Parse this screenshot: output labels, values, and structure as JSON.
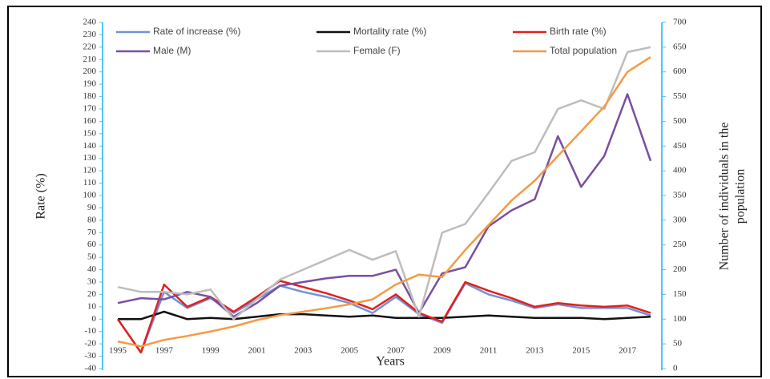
{
  "chart_data": {
    "type": "line",
    "x": [
      1995,
      1996,
      1997,
      1998,
      1999,
      2000,
      2001,
      2002,
      2003,
      2004,
      2005,
      2006,
      2007,
      2008,
      2009,
      2010,
      2011,
      2012,
      2013,
      2014,
      2015,
      2016,
      2017,
      2018
    ],
    "xlim": [
      1995,
      2018
    ],
    "xticks": [
      1995,
      1997,
      1999,
      2001,
      2003,
      2005,
      2007,
      2009,
      2011,
      2013,
      2015,
      2017
    ],
    "xlabel": "Years",
    "ylabel": "Rate (%)",
    "y2label": [
      "Number of individuals in the",
      "population"
    ],
    "ylim": [
      -40,
      240
    ],
    "yticks": [
      -40,
      -30,
      -20,
      -10,
      0,
      10,
      20,
      30,
      40,
      50,
      60,
      70,
      80,
      90,
      100,
      110,
      120,
      130,
      140,
      150,
      160,
      170,
      180,
      190,
      200,
      210,
      220,
      230,
      240
    ],
    "y2lim": [
      0,
      700
    ],
    "y2ticks": [
      0,
      50,
      100,
      150,
      200,
      250,
      300,
      350,
      400,
      450,
      500,
      550,
      600,
      650,
      700
    ],
    "series": [
      {
        "name": "Rate of increase (%)",
        "color": "#6f93d8",
        "values": [
          0,
          -27,
          22,
          9,
          17,
          5,
          16,
          27,
          22,
          18,
          13,
          5,
          18,
          4,
          -3,
          29,
          20,
          15,
          9,
          12,
          9,
          9,
          9,
          3
        ]
      },
      {
        "name": "Mortality rate (%)",
        "color": "#111111",
        "values": [
          0,
          0,
          6,
          0,
          1,
          0,
          2,
          4,
          4,
          3,
          2,
          3,
          1,
          1,
          1,
          2,
          3,
          2,
          1,
          1,
          1,
          0,
          1,
          2
        ]
      },
      {
        "name": "Birth rate (%)",
        "color": "#e3201b",
        "values": [
          0,
          -27,
          28,
          10,
          18,
          6,
          18,
          31,
          26,
          21,
          15,
          8,
          20,
          5,
          -2,
          30,
          23,
          17,
          10,
          13,
          11,
          10,
          11,
          5
        ]
      },
      {
        "name": "Male (M)",
        "color": "#7a4fa0",
        "values": [
          13,
          17,
          16,
          22,
          18,
          2,
          13,
          27,
          30,
          33,
          35,
          35,
          40,
          5,
          37,
          42,
          75,
          88,
          97,
          148,
          107,
          132,
          182,
          128
        ]
      },
      {
        "name": "Female (F)",
        "color": "#bdbdbd",
        "values": [
          26,
          22,
          22,
          20,
          24,
          0,
          16,
          32,
          40,
          48,
          56,
          48,
          55,
          2,
          70,
          77,
          102,
          128,
          135,
          170,
          177,
          170,
          216,
          220
        ]
      },
      {
        "name": "Total population",
        "color": "#f59a42",
        "axis": "y2",
        "values": [
          55,
          45,
          58,
          66,
          75,
          85,
          98,
          108,
          115,
          122,
          130,
          140,
          170,
          190,
          185,
          240,
          290,
          340,
          380,
          430,
          480,
          530,
          600,
          630
        ]
      }
    ]
  }
}
